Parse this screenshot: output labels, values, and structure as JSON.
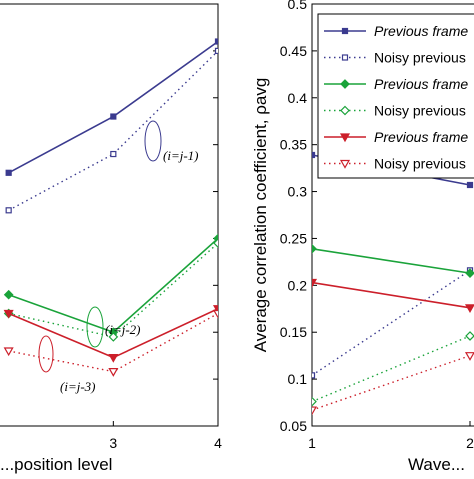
{
  "colors": {
    "blue": "#3b3b8f",
    "green": "#1aa33a",
    "red": "#cc1f2a"
  },
  "chart_data": [
    {
      "type": "line",
      "xlabel": "...position level",
      "ylabel": "",
      "x_ticks": [
        "3",
        "4"
      ],
      "xlim": [
        1,
        4
      ],
      "ylim": [
        0.05,
        0.5
      ],
      "grid": false,
      "series": [
        {
          "name": "",
          "color": "blue",
          "style": "solid",
          "marker": "square",
          "x": [
            2,
            3,
            4
          ],
          "y": [
            0.32,
            0.38,
            0.46
          ]
        },
        {
          "name": "",
          "color": "blue",
          "style": "dotted",
          "marker": "square-open",
          "x": [
            2,
            3,
            4
          ],
          "y": [
            0.28,
            0.34,
            0.45
          ]
        },
        {
          "name": "",
          "color": "green",
          "style": "solid",
          "marker": "diamond",
          "x": [
            2,
            3,
            4
          ],
          "y": [
            0.19,
            0.15,
            0.25
          ]
        },
        {
          "name": "",
          "color": "green",
          "style": "dotted",
          "marker": "diamond-open",
          "x": [
            2,
            3,
            4
          ],
          "y": [
            0.17,
            0.145,
            0.245
          ]
        },
        {
          "name": "",
          "color": "red",
          "style": "solid",
          "marker": "triangle",
          "x": [
            2,
            3,
            4
          ],
          "y": [
            0.17,
            0.123,
            0.175
          ]
        },
        {
          "name": "",
          "color": "red",
          "style": "dotted",
          "marker": "triangle-open",
          "x": [
            2,
            3,
            4
          ],
          "y": [
            0.13,
            0.108,
            0.17
          ]
        }
      ],
      "annotations": [
        "(i=j-1)",
        "(i=j-2)",
        "(i=j-3)"
      ]
    },
    {
      "type": "line",
      "xlabel": "Wave...",
      "ylabel": "Average correlation coefficient, ρavg",
      "x_ticks": [
        "1",
        "2"
      ],
      "y_ticks": [
        "0.05",
        "0.1",
        "0.15",
        "0.2",
        "0.25",
        "0.3",
        "0.35",
        "0.4",
        "0.45",
        "0.5"
      ],
      "xlim": [
        1,
        2
      ],
      "ylim": [
        0.05,
        0.5
      ],
      "grid": false,
      "legend_placement": "top-right",
      "series": [
        {
          "name": "Previous frame",
          "color": "blue",
          "style": "solid",
          "marker": "square",
          "x": [
            1,
            2
          ],
          "y": [
            0.339,
            0.307
          ]
        },
        {
          "name": "Noisy previous",
          "color": "blue",
          "style": "dotted",
          "marker": "square-open",
          "x": [
            1,
            2
          ],
          "y": [
            0.104,
            0.216
          ]
        },
        {
          "name": "Previous frame",
          "color": "green",
          "style": "solid",
          "marker": "diamond",
          "x": [
            1,
            2
          ],
          "y": [
            0.239,
            0.213
          ]
        },
        {
          "name": "Noisy previous",
          "color": "green",
          "style": "dotted",
          "marker": "diamond-open",
          "x": [
            1,
            2
          ],
          "y": [
            0.076,
            0.146
          ]
        },
        {
          "name": "Previous frame",
          "color": "red",
          "style": "solid",
          "marker": "triangle",
          "x": [
            1,
            2
          ],
          "y": [
            0.203,
            0.176
          ]
        },
        {
          "name": "Noisy previous",
          "color": "red",
          "style": "dotted",
          "marker": "triangle-open",
          "x": [
            1,
            2
          ],
          "y": [
            0.067,
            0.125
          ]
        }
      ]
    }
  ]
}
